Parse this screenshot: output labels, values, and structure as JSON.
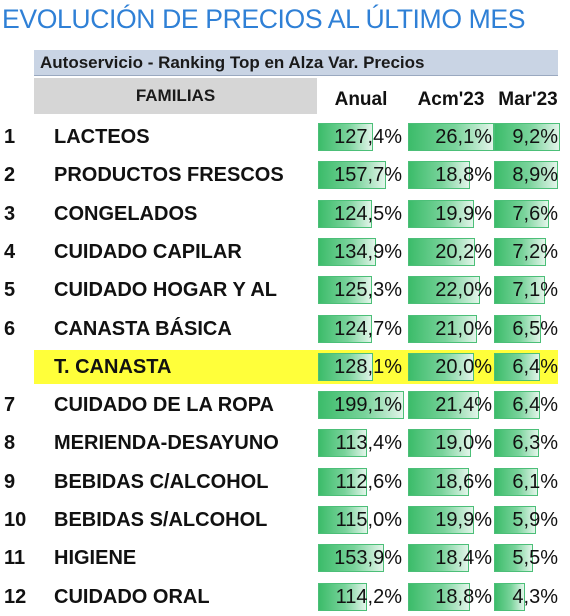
{
  "chart_data": {
    "type": "table",
    "title": "EVOLUCIÓN DE PRECIOS AL ÚLTIMO MES",
    "subtitle": "Autoservicio - Ranking Top en Alza Var. Precios",
    "row_header": "FAMILIAS",
    "columns": [
      "Anual",
      "Acm'23",
      "Mar'23"
    ],
    "column_max": [
      199.1,
      26.1,
      9.2
    ],
    "bar_color": "#3cbc6a",
    "highlight_color": "#ffff3a",
    "rows": [
      {
        "rank": "1",
        "family": "LACTEOS",
        "values": [
          127.4,
          26.1,
          9.2
        ],
        "labels": [
          "127,4%",
          "26,1%",
          "9,2%"
        ],
        "highlight": false
      },
      {
        "rank": "2",
        "family": "PRODUCTOS FRESCOS",
        "values": [
          157.7,
          18.8,
          8.9
        ],
        "labels": [
          "157,7%",
          "18,8%",
          "8,9%"
        ],
        "highlight": false
      },
      {
        "rank": "3",
        "family": "CONGELADOS",
        "values": [
          124.5,
          19.9,
          7.6
        ],
        "labels": [
          "124,5%",
          "19,9%",
          "7,6%"
        ],
        "highlight": false
      },
      {
        "rank": "4",
        "family": "CUIDADO CAPILAR",
        "values": [
          134.9,
          20.2,
          7.2
        ],
        "labels": [
          "134,9%",
          "20,2%",
          "7,2%"
        ],
        "highlight": false
      },
      {
        "rank": "5",
        "family": "CUIDADO HOGAR Y AL",
        "values": [
          125.3,
          22.0,
          7.1
        ],
        "labels": [
          "125,3%",
          "22,0%",
          "7,1%"
        ],
        "highlight": false
      },
      {
        "rank": "6",
        "family": "CANASTA BÁSICA",
        "values": [
          124.7,
          21.0,
          6.5
        ],
        "labels": [
          "124,7%",
          "21,0%",
          "6,5%"
        ],
        "highlight": false
      },
      {
        "rank": "",
        "family": "T. CANASTA",
        "values": [
          128.1,
          20.0,
          6.4
        ],
        "labels": [
          "128,1%",
          "20,0%",
          "6,4%"
        ],
        "highlight": true
      },
      {
        "rank": "7",
        "family": "CUIDADO DE LA ROPA",
        "values": [
          199.1,
          21.4,
          6.4
        ],
        "labels": [
          "199,1%",
          "21,4%",
          "6,4%"
        ],
        "highlight": false
      },
      {
        "rank": "8",
        "family": "MERIENDA-DESAYUNO",
        "values": [
          113.4,
          19.0,
          6.3
        ],
        "labels": [
          "113,4%",
          "19,0%",
          "6,3%"
        ],
        "highlight": false
      },
      {
        "rank": "9",
        "family": "BEBIDAS C/ALCOHOL",
        "values": [
          112.6,
          18.6,
          6.1
        ],
        "labels": [
          "112,6%",
          "18,6%",
          "6,1%"
        ],
        "highlight": false
      },
      {
        "rank": "10",
        "family": "BEBIDAS S/ALCOHOL",
        "values": [
          115.0,
          19.9,
          5.9
        ],
        "labels": [
          "115,0%",
          "19,9%",
          "5,9%"
        ],
        "highlight": false
      },
      {
        "rank": "11",
        "family": "HIGIENE",
        "values": [
          153.9,
          18.4,
          5.5
        ],
        "labels": [
          "153,9%",
          "18,4%",
          "5,5%"
        ],
        "highlight": false
      },
      {
        "rank": "12",
        "family": "CUIDADO ORAL",
        "values": [
          114.2,
          18.8,
          4.3
        ],
        "labels": [
          "114,2%",
          "18,8%",
          "4,3%"
        ],
        "highlight": false
      }
    ]
  }
}
